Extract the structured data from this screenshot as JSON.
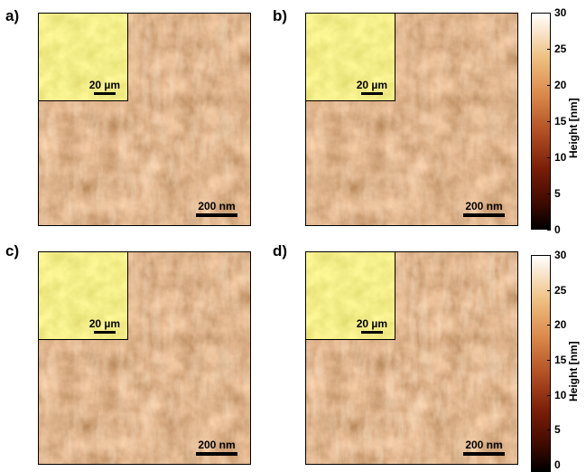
{
  "panels": [
    {
      "label": "a)",
      "scale_bar": "200 nm",
      "inset_scale_bar": "20 µm"
    },
    {
      "label": "b)",
      "scale_bar": "200 nm",
      "inset_scale_bar": "20 µm"
    },
    {
      "label": "c)",
      "scale_bar": "200 nm",
      "inset_scale_bar": "20 µm"
    },
    {
      "label": "d)",
      "scale_bar": "200 nm",
      "inset_scale_bar": "20 µm"
    }
  ],
  "colorbar": {
    "label": "Height [nm]",
    "ticks": [
      "30",
      "25",
      "20",
      "15",
      "10",
      "5",
      "0"
    ],
    "range": [
      0,
      30
    ]
  },
  "colors": {
    "afm_dark": "#7a2a0e",
    "afm_mid": "#c8784a",
    "afm_light": "#f6d7a6",
    "inset_yellow": "#e6df48"
  }
}
